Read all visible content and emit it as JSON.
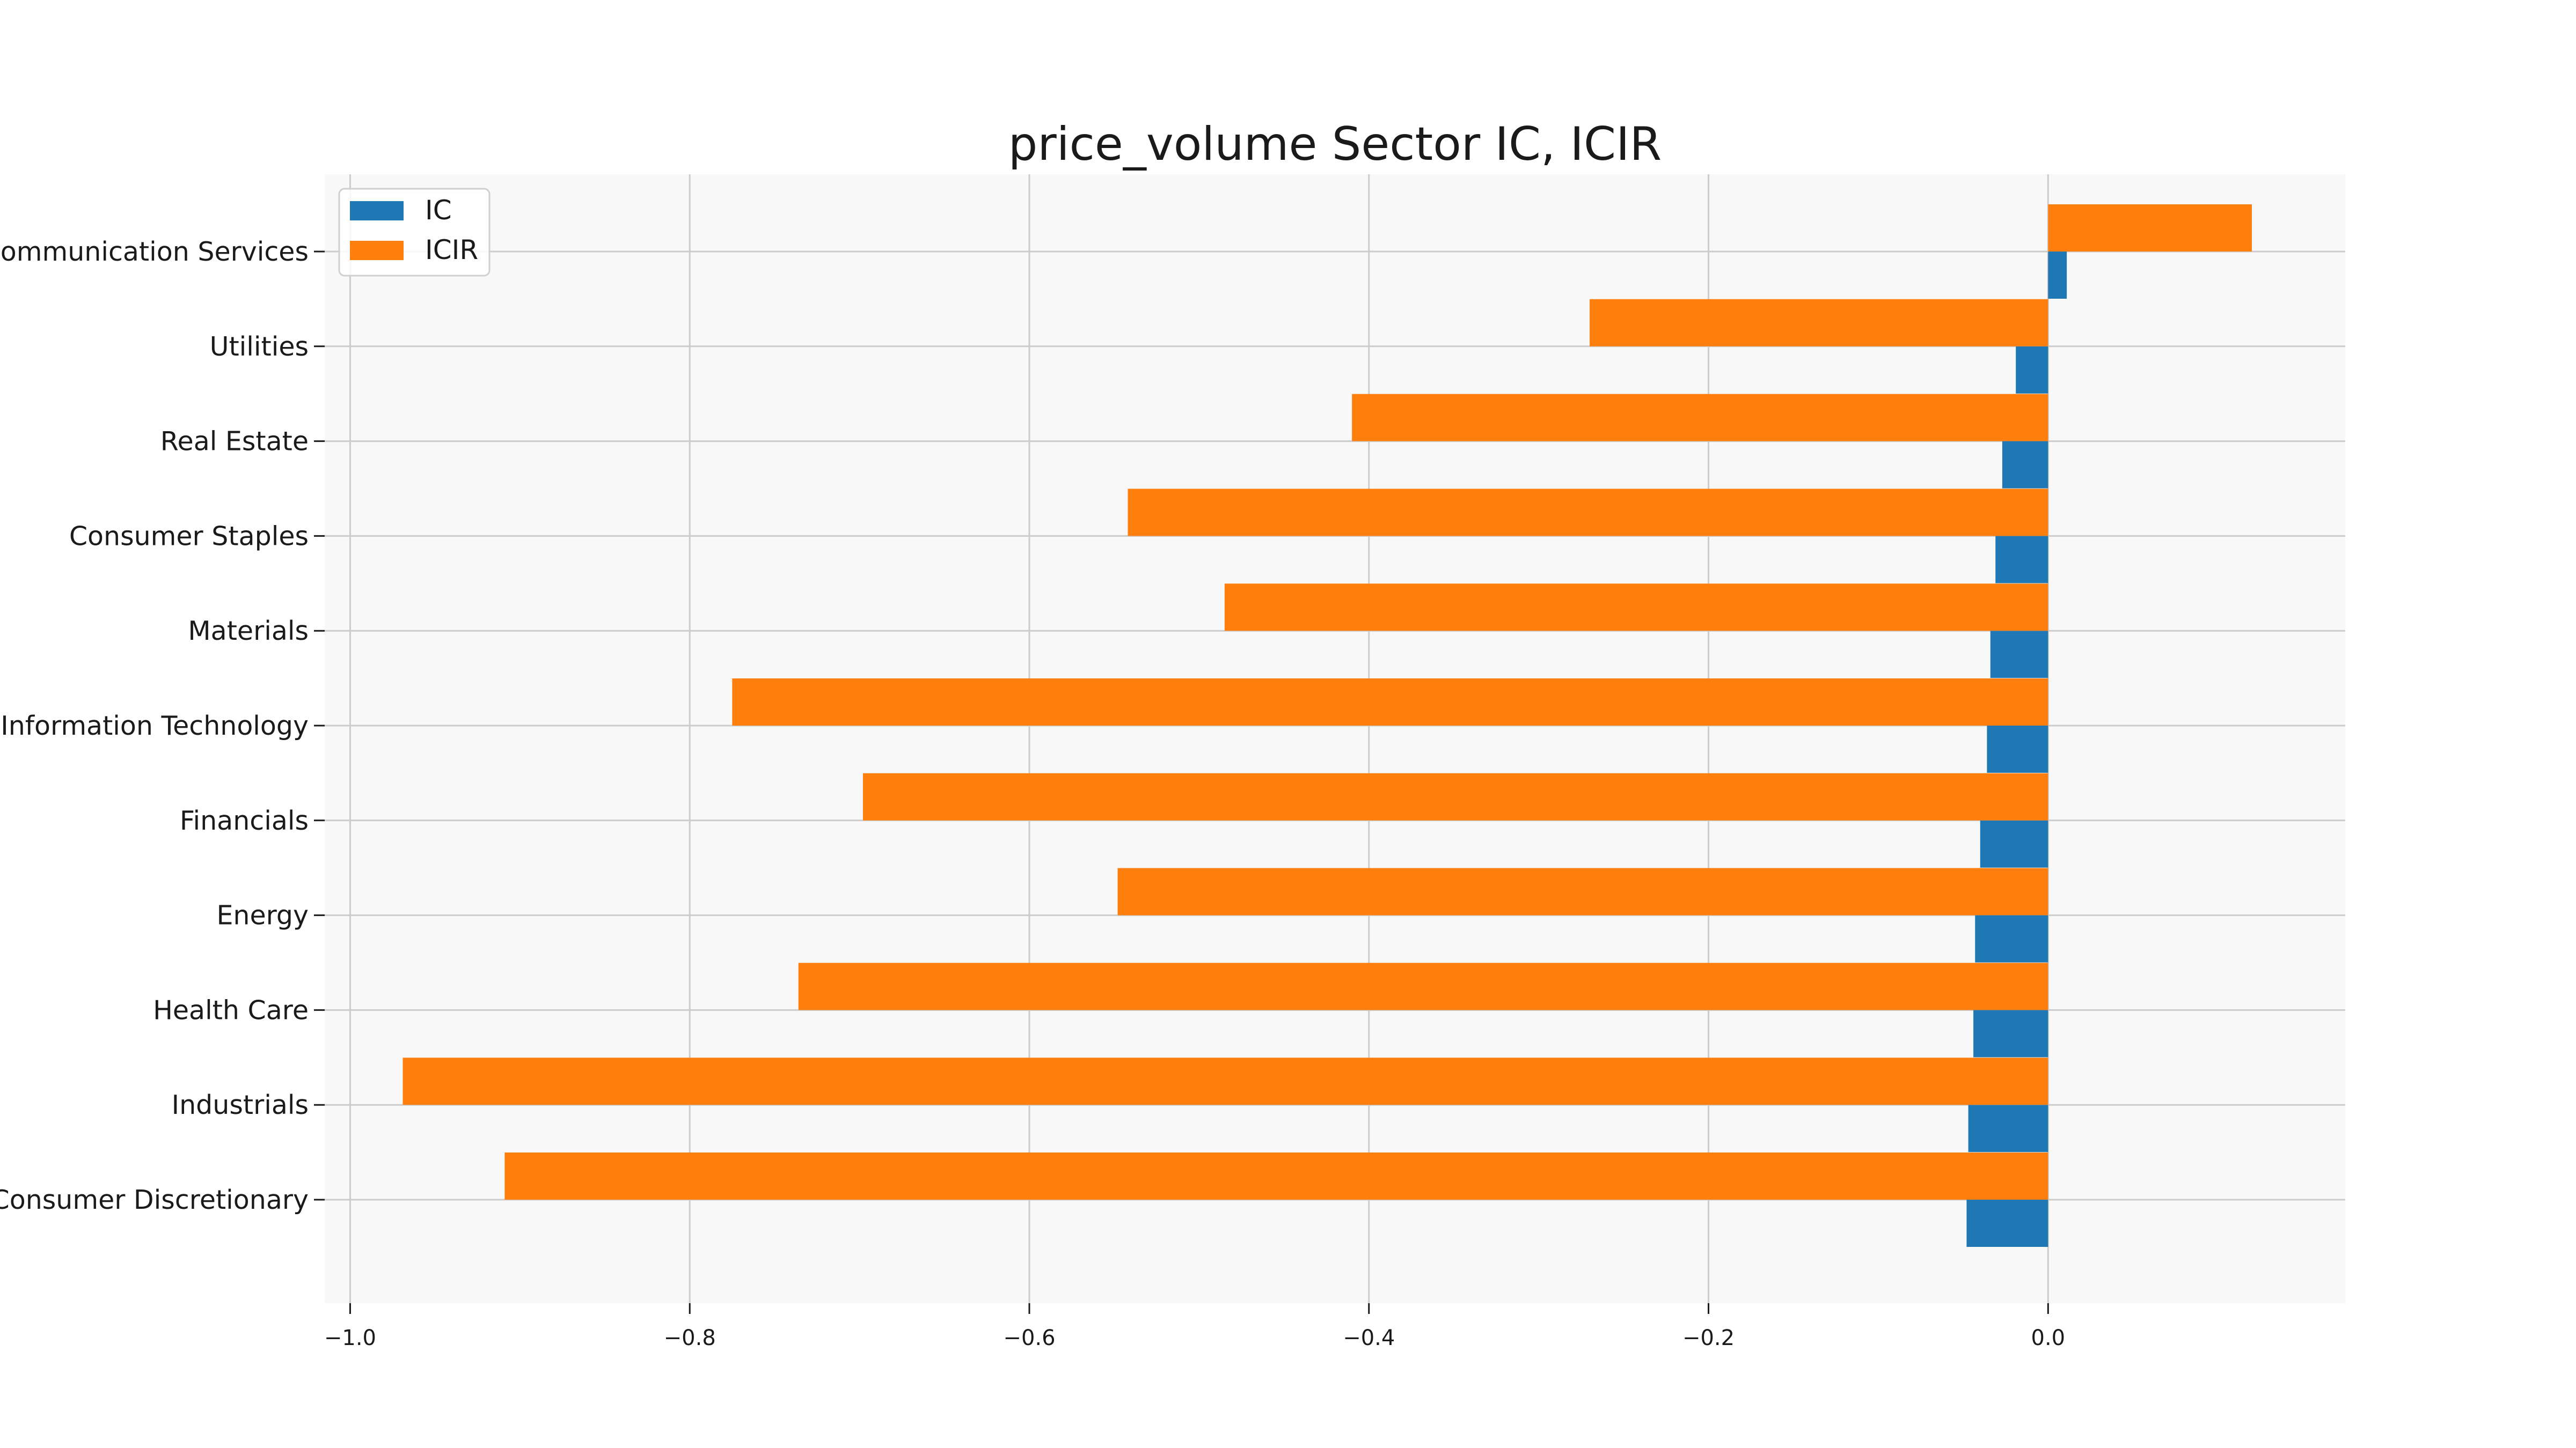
{
  "chart_data": {
    "type": "bar",
    "orientation": "horizontal",
    "title": "price_volume Sector IC, ICIR",
    "xlabel": "",
    "ylabel": "",
    "xlim": [
      -1.015,
      0.175
    ],
    "x_ticks": [
      -1.0,
      -0.8,
      -0.6,
      -0.4,
      -0.2,
      0.0
    ],
    "x_tick_labels": [
      "−1.0",
      "−0.8",
      "−0.6",
      "−0.4",
      "−0.2",
      "0.0"
    ],
    "grid": true,
    "legend_position": "top-left",
    "categories": [
      "Consumer Discretionary",
      "Industrials",
      "Health Care",
      "Energy",
      "Financials",
      "Information Technology",
      "Materials",
      "Consumer Staples",
      "Real Estate",
      "Utilities",
      "Communication Services"
    ],
    "series": [
      {
        "name": "IC",
        "color": "#1f77b4",
        "values": [
          -0.048,
          -0.047,
          -0.044,
          -0.043,
          -0.04,
          -0.036,
          -0.034,
          -0.031,
          -0.027,
          -0.019,
          0.011
        ]
      },
      {
        "name": "ICIR",
        "color": "#ff7f0e",
        "values": [
          -0.909,
          -0.969,
          -0.736,
          -0.548,
          -0.698,
          -0.775,
          -0.485,
          -0.542,
          -0.41,
          -0.27,
          0.12
        ]
      }
    ],
    "plot_background": "#f8f8f8",
    "grid_color": "#cccccc"
  }
}
